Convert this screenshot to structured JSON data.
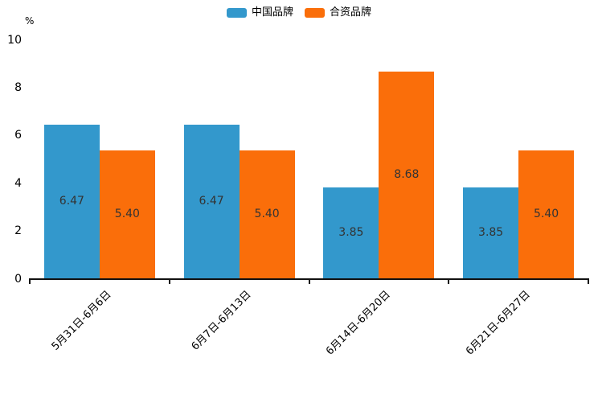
{
  "chart_data": {
    "type": "bar",
    "title": "",
    "xlabel": "",
    "ylabel": "%",
    "ylim": [
      0,
      10
    ],
    "yticks": [
      0,
      2,
      4,
      6,
      8,
      10
    ],
    "grid": false,
    "legend_position": "top-center",
    "categories": [
      "5月31日-6月6日",
      "6月7日-6月13日",
      "6月14日-6月20日",
      "6月21日-6月27日"
    ],
    "series": [
      {
        "name": "中国品牌",
        "color": "#3398cc",
        "values": [
          6.47,
          6.47,
          3.85,
          3.85
        ],
        "labels": [
          "6.47",
          "6.47",
          "3.85",
          "3.85"
        ]
      },
      {
        "name": "合资品牌",
        "color": "#fa6e0a",
        "values": [
          5.4,
          5.4,
          8.68,
          5.4
        ],
        "labels": [
          "5.40",
          "5.40",
          "8.68",
          "5.40"
        ]
      }
    ],
    "value_label_position": "inside-center",
    "value_label_color": "#333333",
    "axis_color": "#111111",
    "x_tick_rotation_deg": 45
  }
}
